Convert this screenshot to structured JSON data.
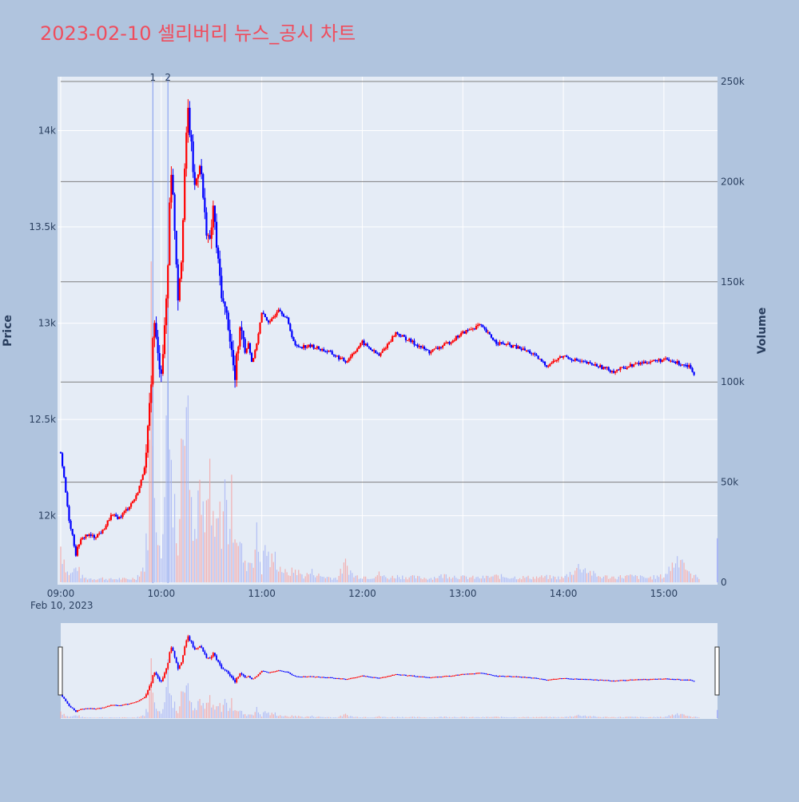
{
  "chart_data": {
    "type": "candlestick",
    "title": "2023-02-10 셀리버리 뉴스_공시 차트",
    "date_label": "Feb 10, 2023",
    "y_axis_label": "Price",
    "y2_axis_label": "Volume",
    "x_ticks": [
      "09:00",
      "10:00",
      "11:00",
      "12:00",
      "13:00",
      "14:00",
      "15:00"
    ],
    "y_ticks": [
      {
        "value": 12000,
        "label": "12k"
      },
      {
        "value": 12500,
        "label": "12.5k"
      },
      {
        "value": 13000,
        "label": "13k"
      },
      {
        "value": 13500,
        "label": "13.5k"
      },
      {
        "value": 14000,
        "label": "14k"
      }
    ],
    "y2_ticks": [
      {
        "value": 0,
        "label": "0"
      },
      {
        "value": 50000,
        "label": "50k"
      },
      {
        "value": 100000,
        "label": "100k"
      },
      {
        "value": 150000,
        "label": "150k"
      },
      {
        "value": 200000,
        "label": "200k"
      },
      {
        "value": 250000,
        "label": "250k"
      }
    ],
    "price_range": [
      11650,
      14280
    ],
    "volume_range": [
      0,
      250000
    ],
    "time_range_minutes": [
      0,
      392
    ],
    "news_markers": [
      {
        "label": "1",
        "minute": 55
      },
      {
        "label": "2",
        "minute": 64
      }
    ],
    "up_color": "#ff0000",
    "down_color": "#0000ff",
    "price_path": [
      [
        0,
        12330
      ],
      [
        3,
        12120
      ],
      [
        5,
        11980
      ],
      [
        7,
        11900
      ],
      [
        9,
        11800
      ],
      [
        11,
        11860
      ],
      [
        15,
        11900
      ],
      [
        20,
        11890
      ],
      [
        25,
        11920
      ],
      [
        30,
        12000
      ],
      [
        35,
        11990
      ],
      [
        40,
        12040
      ],
      [
        45,
        12100
      ],
      [
        48,
        12180
      ],
      [
        51,
        12300
      ],
      [
        53,
        12550
      ],
      [
        55,
        12900
      ],
      [
        56,
        13000
      ],
      [
        58,
        12820
      ],
      [
        60,
        12770
      ],
      [
        62,
        12950
      ],
      [
        64,
        13300
      ],
      [
        65,
        13650
      ],
      [
        66,
        13800
      ],
      [
        68,
        13500
      ],
      [
        70,
        13150
      ],
      [
        72,
        13350
      ],
      [
        74,
        13800
      ],
      [
        76,
        14100
      ],
      [
        78,
        13900
      ],
      [
        80,
        13700
      ],
      [
        83,
        13850
      ],
      [
        86,
        13550
      ],
      [
        89,
        13400
      ],
      [
        91,
        13600
      ],
      [
        94,
        13300
      ],
      [
        97,
        13100
      ],
      [
        100,
        13000
      ],
      [
        102,
        12850
      ],
      [
        104,
        12700
      ],
      [
        106,
        12900
      ],
      [
        108,
        13000
      ],
      [
        110,
        12850
      ],
      [
        112,
        12900
      ],
      [
        114,
        12800
      ],
      [
        116,
        12850
      ],
      [
        120,
        13050
      ],
      [
        125,
        13000
      ],
      [
        130,
        13080
      ],
      [
        135,
        13020
      ],
      [
        140,
        12880
      ],
      [
        150,
        12880
      ],
      [
        160,
        12850
      ],
      [
        170,
        12800
      ],
      [
        180,
        12900
      ],
      [
        190,
        12830
      ],
      [
        200,
        12950
      ],
      [
        210,
        12900
      ],
      [
        220,
        12850
      ],
      [
        230,
        12890
      ],
      [
        240,
        12950
      ],
      [
        250,
        12990
      ],
      [
        260,
        12900
      ],
      [
        270,
        12880
      ],
      [
        280,
        12850
      ],
      [
        290,
        12780
      ],
      [
        300,
        12830
      ],
      [
        310,
        12800
      ],
      [
        320,
        12780
      ],
      [
        330,
        12750
      ],
      [
        340,
        12780
      ],
      [
        350,
        12800
      ],
      [
        360,
        12810
      ],
      [
        370,
        12790
      ],
      [
        375,
        12780
      ],
      [
        378,
        12740
      ]
    ],
    "volume_bars": [
      [
        0,
        18000
      ],
      [
        1,
        14000
      ],
      [
        2,
        12000
      ],
      [
        3,
        8000
      ],
      [
        4,
        5000
      ],
      [
        6,
        4000
      ],
      [
        8,
        6000
      ],
      [
        10,
        8000
      ],
      [
        12,
        3000
      ],
      [
        15,
        2000
      ],
      [
        20,
        1800
      ],
      [
        25,
        2000
      ],
      [
        30,
        1500
      ],
      [
        35,
        1800
      ],
      [
        40,
        1500
      ],
      [
        45,
        2200
      ],
      [
        50,
        8000
      ],
      [
        52,
        28000
      ],
      [
        53,
        60000
      ],
      [
        54,
        140000
      ],
      [
        55,
        90000
      ],
      [
        56,
        60000
      ],
      [
        57,
        40000
      ],
      [
        58,
        18000
      ],
      [
        59,
        14000
      ],
      [
        60,
        12000
      ],
      [
        61,
        30000
      ],
      [
        62,
        70000
      ],
      [
        63,
        110000
      ],
      [
        64,
        125000
      ],
      [
        65,
        95000
      ],
      [
        66,
        55000
      ],
      [
        67,
        30000
      ],
      [
        68,
        45000
      ],
      [
        69,
        35000
      ],
      [
        70,
        14000
      ],
      [
        72,
        60000
      ],
      [
        73,
        90000
      ],
      [
        74,
        110000
      ],
      [
        75,
        140000
      ],
      [
        76,
        130000
      ],
      [
        77,
        80000
      ],
      [
        78,
        45000
      ],
      [
        79,
        20000
      ],
      [
        80,
        26000
      ],
      [
        82,
        40000
      ],
      [
        84,
        35000
      ],
      [
        86,
        25000
      ],
      [
        88,
        40000
      ],
      [
        89,
        55000
      ],
      [
        90,
        30000
      ],
      [
        92,
        20000
      ],
      [
        94,
        32000
      ],
      [
        96,
        28000
      ],
      [
        98,
        45000
      ],
      [
        100,
        26000
      ],
      [
        102,
        38000
      ],
      [
        104,
        30000
      ],
      [
        106,
        22000
      ],
      [
        108,
        15000
      ],
      [
        110,
        8000
      ],
      [
        112,
        10000
      ],
      [
        115,
        12000
      ],
      [
        117,
        22000
      ],
      [
        120,
        6000
      ],
      [
        122,
        18000
      ],
      [
        125,
        10000
      ],
      [
        128,
        12000
      ],
      [
        130,
        8000
      ],
      [
        135,
        4000
      ],
      [
        140,
        6000
      ],
      [
        145,
        3000
      ],
      [
        150,
        5000
      ],
      [
        155,
        3000
      ],
      [
        160,
        2500
      ],
      [
        165,
        2000
      ],
      [
        170,
        9000
      ],
      [
        175,
        3000
      ],
      [
        180,
        3000
      ],
      [
        185,
        2500
      ],
      [
        190,
        4000
      ],
      [
        195,
        2000
      ],
      [
        200,
        3000
      ],
      [
        210,
        2500
      ],
      [
        220,
        2000
      ],
      [
        230,
        3500
      ],
      [
        240,
        2500
      ],
      [
        250,
        2200
      ],
      [
        260,
        3000
      ],
      [
        270,
        2500
      ],
      [
        280,
        2400
      ],
      [
        290,
        2600
      ],
      [
        300,
        2200
      ],
      [
        310,
        8000
      ],
      [
        320,
        3000
      ],
      [
        330,
        2500
      ],
      [
        340,
        3000
      ],
      [
        350,
        2200
      ],
      [
        360,
        3000
      ],
      [
        370,
        14000
      ],
      [
        375,
        4000
      ],
      [
        380,
        2500
      ],
      [
        385,
        3000
      ],
      [
        388,
        2200
      ],
      [
        392,
        22000
      ]
    ]
  }
}
